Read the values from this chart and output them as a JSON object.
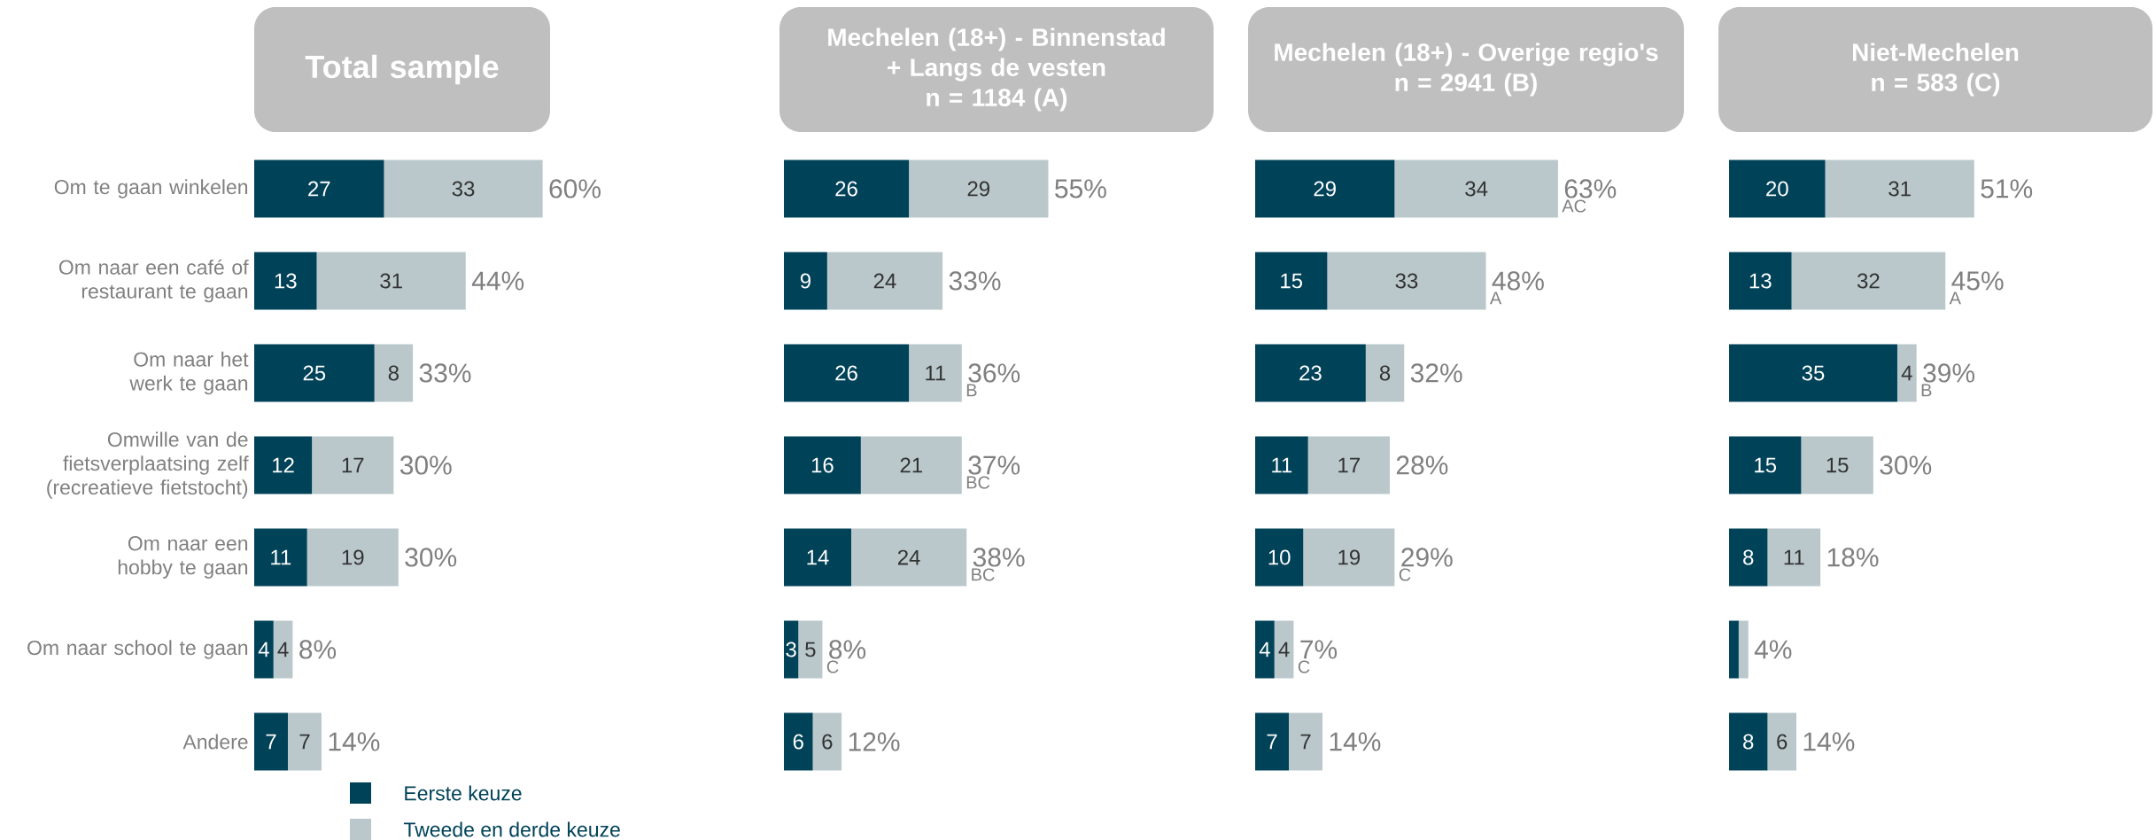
{
  "chart_data": [
    {
      "type": "bar",
      "orientation": "horizontal",
      "stacked": true,
      "title": "Total sample",
      "tick_labels": "y",
      "legend": "bottom",
      "data_labels": true,
      "categories": [
        "Om te gaan winkelen",
        "Om naar een café of restaurant te gaan",
        "Om naar het werk te gaan",
        "Omwille van de fietsverplaatsing zelf (recreatieve fietstocht)",
        "Om naar een hobby te gaan",
        "Om naar school te gaan",
        "Andere"
      ],
      "series": [
        {
          "name": "Eerste keuze",
          "color": "#004258",
          "values": [
            27,
            13,
            25,
            12,
            11,
            4,
            7
          ]
        },
        {
          "name": "Tweede en derde keuze",
          "color": "#bac8cc",
          "values": [
            33,
            31,
            8,
            17,
            19,
            4,
            7
          ]
        }
      ],
      "totals": [
        "60%",
        "44%",
        "33%",
        "30%",
        "30%",
        "8%",
        "14%"
      ]
    },
    {
      "type": "bar",
      "orientation": "horizontal",
      "stacked": true,
      "title": "Mechelen (18+) - Binnenstad + Langs de vesten",
      "subtitle": "n = 1184 (A)",
      "tick_labels": false,
      "data_labels": true,
      "categories": [
        "Om te gaan winkelen",
        "Om naar een café of restaurant te gaan",
        "Om naar het werk te gaan",
        "Omwille van de fietsverplaatsing zelf (recreatieve fietstocht)",
        "Om naar een hobby te gaan",
        "Om naar school te gaan",
        "Andere"
      ],
      "series": [
        {
          "color": "#004258",
          "values": [
            26,
            9,
            26,
            16,
            14,
            3,
            6
          ]
        },
        {
          "color": "#bac8cc",
          "values": [
            29,
            24,
            11,
            21,
            24,
            5,
            6
          ]
        }
      ],
      "totals": [
        "55%",
        "33%",
        "36%",
        "37%",
        "38%",
        "8%",
        "12%"
      ],
      "annotations": [
        {
          "text": "B",
          "x": 37,
          "y": "Om naar het werk te gaan"
        },
        {
          "text": "BC",
          "x": 37,
          "y": "Omwille van de fietsverplaatsing zelf (recreatieve fietstocht)"
        },
        {
          "text": "BC",
          "x": 38,
          "y": "Om naar een hobby te gaan"
        },
        {
          "text": "C",
          "x": 8,
          "y": "Om naar school te gaan"
        }
      ]
    },
    {
      "type": "bar",
      "orientation": "horizontal",
      "stacked": true,
      "title": "Mechelen (18+) - Overige regio's",
      "subtitle": "n = 2941 (B)",
      "tick_labels": false,
      "data_labels": true,
      "categories": [
        "Om te gaan winkelen",
        "Om naar een café of restaurant te gaan",
        "Om naar het werk te gaan",
        "Omwille van de fietsverplaatsing zelf (recreatieve fietstocht)",
        "Om naar een hobby te gaan",
        "Om naar school te gaan",
        "Andere"
      ],
      "series": [
        {
          "color": "#004258",
          "values": [
            29,
            15,
            23,
            11,
            10,
            4,
            7
          ]
        },
        {
          "color": "#bac8cc",
          "values": [
            34,
            33,
            8,
            17,
            19,
            4,
            7
          ]
        }
      ],
      "totals": [
        "63%",
        "48%",
        "32%",
        "28%",
        "29%",
        "7%",
        "14%"
      ],
      "annotations": [
        {
          "text": "AC",
          "x": 63,
          "y": "Om te gaan winkelen"
        },
        {
          "text": "A",
          "x": 48,
          "y": "Om naar een café of restaurant te gaan"
        },
        {
          "text": "C",
          "x": 29,
          "y": "Om naar een hobby te gaan"
        },
        {
          "text": "C",
          "x": 8,
          "y": "Om naar school te gaan"
        }
      ]
    },
    {
      "type": "bar",
      "orientation": "horizontal",
      "stacked": true,
      "title": "Niet-Mechelen",
      "subtitle": "n = 583 (C)",
      "tick_labels": false,
      "categories": [
        "Om te gaan winkelen",
        "Om naar een café of restaurant te gaan",
        "Om naar het werk te gaan",
        "Omwille van de fietsverplaatsing zelf (recreatieve fietstocht)",
        "Om naar een hobby te gaan",
        "Om naar school te gaan",
        "Andere"
      ],
      "series": [
        {
          "color": "#004258",
          "values": [
            20,
            13,
            35,
            15,
            8,
            2,
            8
          ],
          "value_labels": [
            "20",
            "13",
            "35",
            "15",
            "8",
            null,
            "8"
          ]
        },
        {
          "color": "#bac8cc",
          "values": [
            31,
            32,
            4,
            15,
            11,
            2,
            6
          ],
          "value_labels": [
            "31",
            "32",
            "4",
            "15",
            "11",
            null,
            "6"
          ]
        }
      ],
      "totals": [
        "51%",
        "45%",
        "39%",
        "30%",
        "18%",
        "4%",
        "14%"
      ],
      "annotations": [
        {
          "text": "A",
          "x": 45,
          "y": "Om naar een café of restaurant te gaan"
        },
        {
          "text": "B",
          "x": 39,
          "y": "Om naar het werk te gaan"
        }
      ]
    }
  ]
}
